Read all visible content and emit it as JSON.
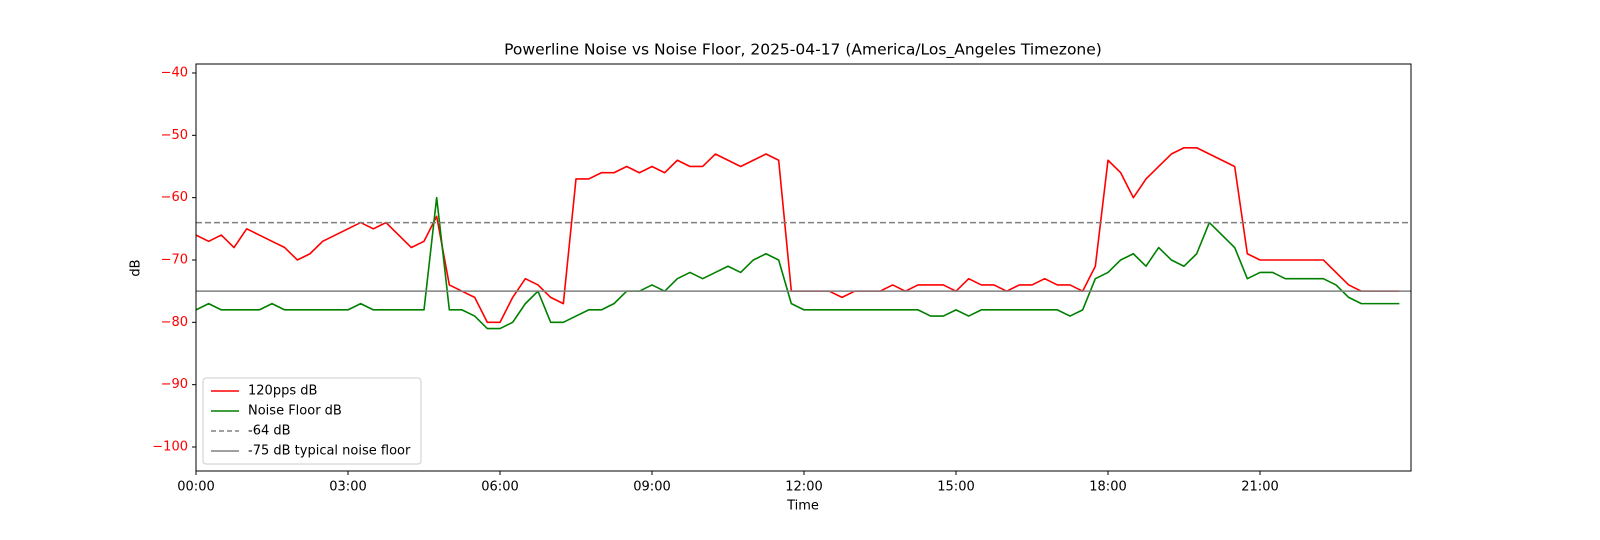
{
  "chart_data": {
    "type": "line",
    "title": "Powerline Noise vs Noise Floor, 2025-04-17 (America/Los_Angeles Timezone)",
    "x_label": "Time",
    "y_label": "dB",
    "y_label_color": "#ff0000",
    "xlim": [
      0,
      23.98
    ],
    "ylim": [
      -103.85,
      -38.56
    ],
    "xticks": [
      {
        "value": 0,
        "label": "00:00"
      },
      {
        "value": 3,
        "label": "03:00"
      },
      {
        "value": 6,
        "label": "06:00"
      },
      {
        "value": 9,
        "label": "09:00"
      },
      {
        "value": 12,
        "label": "12:00"
      },
      {
        "value": 15,
        "label": "15:00"
      },
      {
        "value": 18,
        "label": "18:00"
      },
      {
        "value": 21,
        "label": "21:00"
      }
    ],
    "yticks": [
      {
        "value": -40,
        "label": "−40"
      },
      {
        "value": -50,
        "label": "−50"
      },
      {
        "value": -60,
        "label": "−60"
      },
      {
        "value": -70,
        "label": "−70"
      },
      {
        "value": -80,
        "label": "−80"
      },
      {
        "value": -90,
        "label": "−90"
      },
      {
        "value": -100,
        "label": "−100"
      }
    ],
    "legend": "lower left",
    "x": [
      0,
      0.25,
      0.5,
      0.75,
      1,
      1.25,
      1.5,
      1.75,
      2,
      2.25,
      2.5,
      2.75,
      3,
      3.25,
      3.5,
      3.75,
      4,
      4.25,
      4.5,
      4.75,
      5,
      5.25,
      5.5,
      5.75,
      6,
      6.25,
      6.5,
      6.75,
      7,
      7.25,
      7.5,
      7.75,
      8,
      8.25,
      8.5,
      8.75,
      9,
      9.25,
      9.5,
      9.75,
      10,
      10.25,
      10.5,
      10.75,
      11,
      11.25,
      11.5,
      11.75,
      12,
      12.25,
      12.5,
      12.75,
      13,
      13.25,
      13.5,
      13.75,
      14,
      14.25,
      14.5,
      14.75,
      15,
      15.25,
      15.5,
      15.75,
      16,
      16.25,
      16.5,
      16.75,
      17,
      17.25,
      17.5,
      17.75,
      18,
      18.25,
      18.5,
      18.75,
      19,
      19.25,
      19.5,
      19.75,
      20,
      20.25,
      20.5,
      20.75,
      21,
      21.25,
      21.5,
      21.75,
      22,
      22.25,
      22.5,
      22.75,
      23,
      23.25,
      23.5,
      23.75
    ],
    "series": [
      {
        "name": "120pps dB",
        "color": "#ff0000",
        "values": [
          -66,
          -67,
          -66,
          -68,
          -65,
          -66,
          -67,
          -68,
          -70,
          -69,
          -67,
          -66,
          -65,
          -64,
          -65,
          -64,
          -66,
          -68,
          -67,
          -63,
          -74,
          -75,
          -76,
          -80,
          -80,
          -76,
          -73,
          -74,
          -76,
          -77,
          -57,
          -57,
          -56,
          -56,
          -55,
          -56,
          -55,
          -56,
          -54,
          -55,
          -55,
          -53,
          -54,
          -55,
          -54,
          -53,
          -54,
          -75,
          -75,
          -75,
          -75,
          -76,
          -75,
          -75,
          -75,
          -74,
          -75,
          -74,
          -74,
          -74,
          -75,
          -73,
          -74,
          -74,
          -75,
          -74,
          -74,
          -73,
          -74,
          -74,
          -75,
          -71,
          -54,
          -56,
          -60,
          -57,
          -55,
          -53,
          -52,
          -52,
          -53,
          -54,
          -55,
          -69,
          -70,
          -70,
          -70,
          -70,
          -70,
          -70,
          -72,
          -74,
          -75,
          -75,
          -75,
          -75
        ]
      },
      {
        "name": "Noise Floor dB",
        "color": "#008000",
        "values": [
          -78,
          -77,
          -78,
          -78,
          -78,
          -78,
          -77,
          -78,
          -78,
          -78,
          -78,
          -78,
          -78,
          -77,
          -78,
          -78,
          -78,
          -78,
          -78,
          -60,
          -78,
          -78,
          -79,
          -81,
          -81,
          -80,
          -77,
          -75,
          -80,
          -80,
          -79,
          -78,
          -78,
          -77,
          -75,
          -75,
          -74,
          -75,
          -73,
          -72,
          -73,
          -72,
          -71,
          -72,
          -70,
          -69,
          -70,
          -77,
          -78,
          -78,
          -78,
          -78,
          -78,
          -78,
          -78,
          -78,
          -78,
          -78,
          -79,
          -79,
          -78,
          -79,
          -78,
          -78,
          -78,
          -78,
          -78,
          -78,
          -78,
          -79,
          -78,
          -73,
          -72,
          -70,
          -69,
          -71,
          -68,
          -70,
          -71,
          -69,
          -64,
          -66,
          -68,
          -73,
          -72,
          -72,
          -73,
          -73,
          -73,
          -73,
          -74,
          -76,
          -77,
          -77,
          -77,
          -77
        ]
      }
    ],
    "hlines": [
      {
        "name": "-64 dB",
        "value": -64,
        "color": "#808080",
        "style": "dashed"
      },
      {
        "name": "-75 dB typical noise floor",
        "value": -75,
        "color": "#808080",
        "style": "solid"
      }
    ]
  }
}
